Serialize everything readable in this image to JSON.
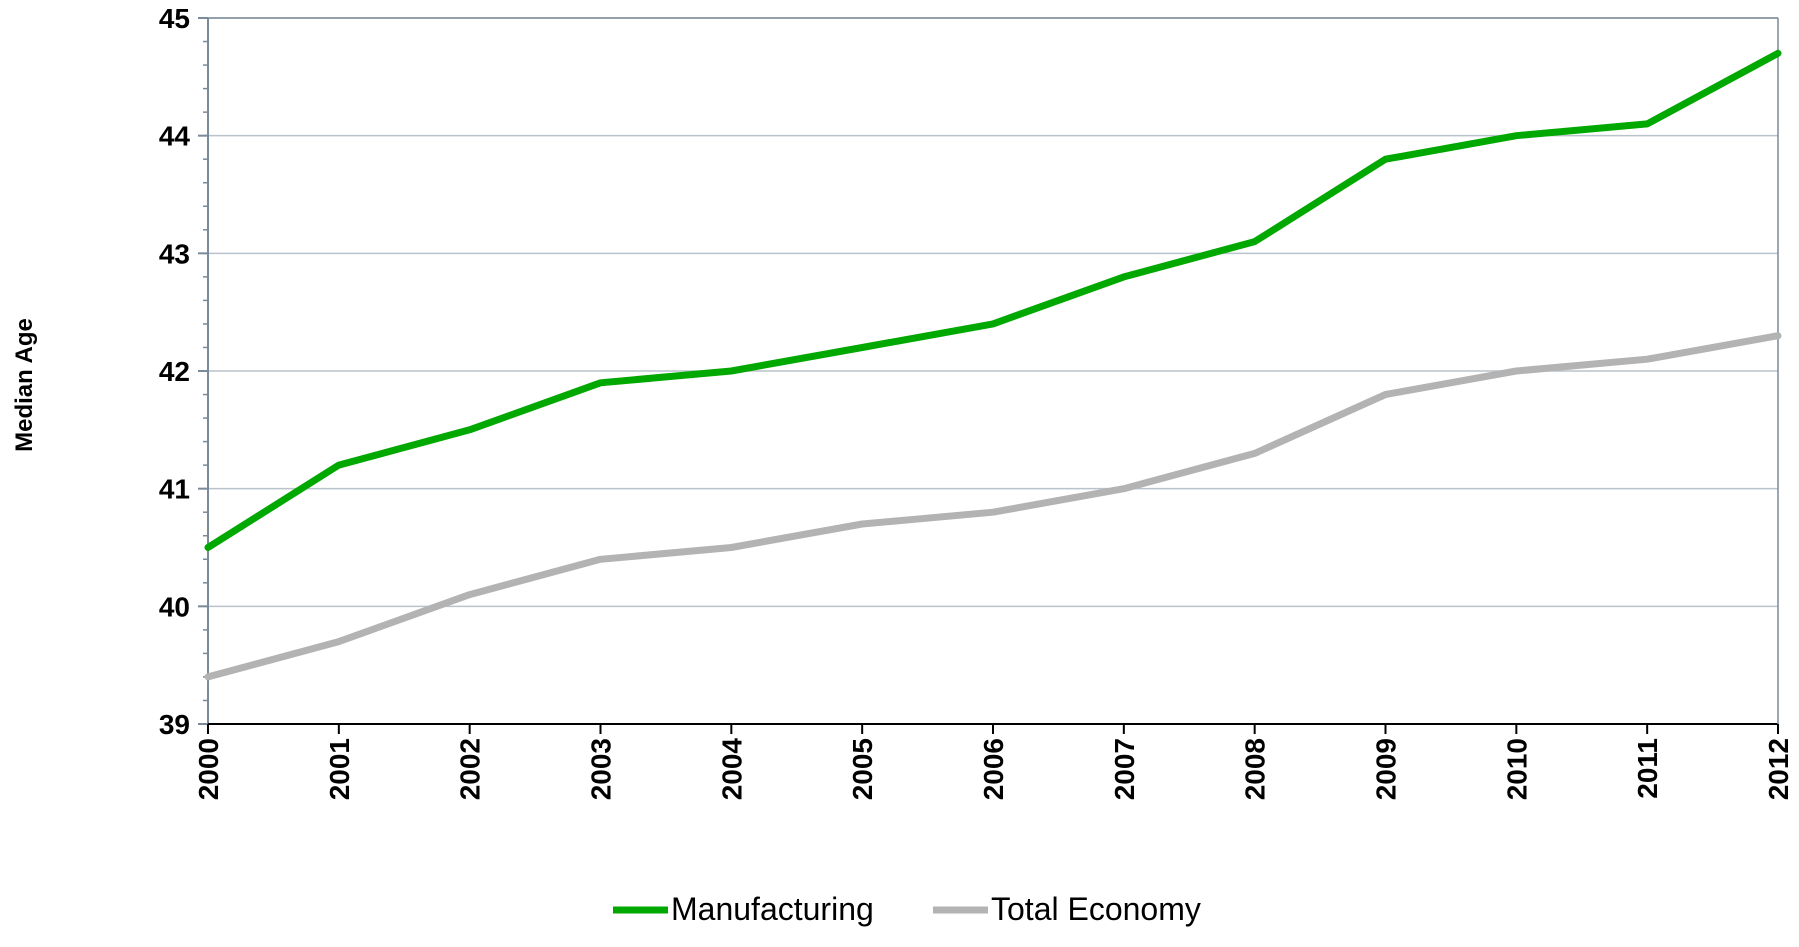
{
  "chart_data": {
    "type": "line",
    "title": "",
    "xlabel": "",
    "ylabel": "Median Age",
    "x": [
      "2000",
      "2001",
      "2002",
      "2003",
      "2004",
      "2005",
      "2006",
      "2007",
      "2008",
      "2009",
      "2010",
      "2011",
      "2012"
    ],
    "ylim": [
      39,
      45
    ],
    "yticks": [
      "39",
      "40",
      "41",
      "42",
      "43",
      "44",
      "45"
    ],
    "grid": true,
    "legend_position": "bottom",
    "series": [
      {
        "name": "Manufacturing",
        "color": "#00a800",
        "values": [
          40.5,
          41.2,
          41.5,
          41.9,
          42.0,
          42.2,
          42.4,
          42.8,
          43.1,
          43.8,
          44.0,
          44.1,
          44.7
        ]
      },
      {
        "name": "Total Economy",
        "color": "#b3b3b3",
        "values": [
          39.4,
          39.7,
          40.1,
          40.4,
          40.5,
          40.7,
          40.8,
          41.0,
          41.3,
          41.8,
          42.0,
          42.1,
          42.3
        ]
      }
    ]
  }
}
